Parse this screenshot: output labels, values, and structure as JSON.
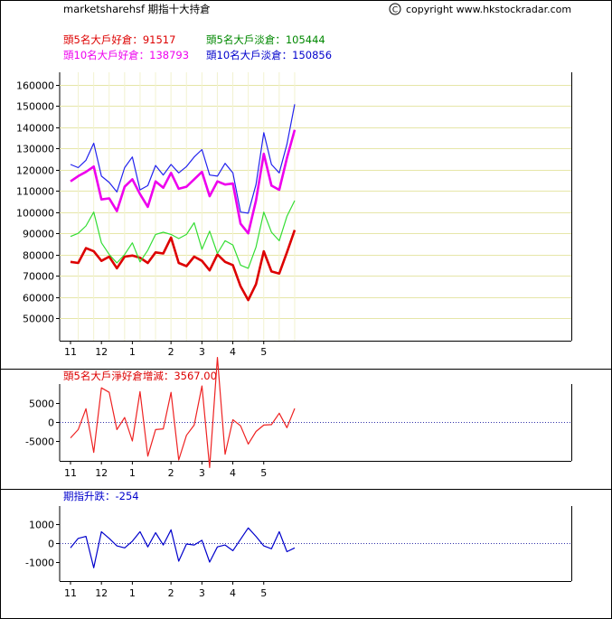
{
  "header": {
    "title": "marketsharehsf 期指十大持倉",
    "copyright_symbol": "C",
    "copyright": "copyright www.hkstockradar.com"
  },
  "legend": {
    "top5_long": {
      "label": "頭5名大戶好倉：",
      "value": "91517",
      "color": "#dd0000"
    },
    "top5_short": {
      "label": "頭5名大戶淡倉：",
      "value": "105444",
      "color": "#008800"
    },
    "top10_long": {
      "label": "頭10名大戶好倉：",
      "value": "138793",
      "color": "#ee00ee"
    },
    "top10_short": {
      "label": "頭10名大戶淡倉：",
      "value": "150856",
      "color": "#0000cc"
    }
  },
  "panel2": {
    "label": "頭5名大戶淨好倉增減：",
    "value": "3567.00",
    "color": "#dd0000"
  },
  "panel3": {
    "label": "期指升跌：",
    "value": "-254",
    "color": "#0000cc"
  },
  "x_axis": {
    "labels": [
      {
        "text": "11",
        "index": 1
      },
      {
        "text": "12",
        "index": 9
      },
      {
        "text": "1",
        "index": 17
      },
      {
        "text": "2",
        "index": 27
      },
      {
        "text": "3",
        "index": 35
      },
      {
        "text": "4",
        "index": 43
      },
      {
        "text": "5",
        "index": 51
      }
    ]
  },
  "chart_data": [
    {
      "type": "line",
      "title": "",
      "ylim": [
        40000,
        170000
      ],
      "yticks": [
        50000,
        60000,
        70000,
        80000,
        90000,
        100000,
        110000,
        120000,
        130000,
        140000,
        150000,
        160000
      ],
      "grid": true,
      "series": [
        {
          "name": "頭5名大戶好倉",
          "color": "#dd0000",
          "width": 2.6,
          "values": [
            76500,
            76000,
            83000,
            81500,
            77000,
            79000,
            73500,
            79000,
            79500,
            78500,
            76000,
            81000,
            80500,
            88000,
            76000,
            74500,
            79000,
            77000,
            72500,
            80000,
            76500,
            75000,
            65000,
            58500,
            66000,
            81500,
            72000,
            71000,
            81000,
            91517
          ]
        },
        {
          "name": "頭5名大戶淡倉",
          "color": "#33dd33",
          "width": 1.2,
          "values": [
            88500,
            90000,
            93500,
            100000,
            85500,
            80000,
            76000,
            80000,
            85500,
            76500,
            82000,
            89500,
            90500,
            89500,
            87500,
            89500,
            95000,
            82500,
            91000,
            80500,
            86500,
            84500,
            75000,
            73500,
            83500,
            100000,
            90500,
            86500,
            98000,
            105444
          ]
        },
        {
          "name": "頭10名大戶好倉",
          "color": "#ee00ee",
          "width": 2.6,
          "values": [
            114500,
            117000,
            119000,
            121500,
            106000,
            106500,
            100500,
            112000,
            115500,
            108500,
            102500,
            114500,
            111500,
            118500,
            111000,
            112000,
            115500,
            119000,
            107500,
            114500,
            113000,
            113500,
            94500,
            90000,
            105500,
            127500,
            112500,
            110500,
            125500,
            138793
          ]
        },
        {
          "name": "頭10名大戶淡倉",
          "color": "#2222ee",
          "width": 1.2,
          "values": [
            122500,
            121000,
            124500,
            132500,
            117000,
            114000,
            109500,
            121000,
            126000,
            110500,
            112500,
            122000,
            117500,
            122500,
            118500,
            121500,
            126000,
            129500,
            117500,
            117000,
            123000,
            118500,
            100000,
            99500,
            113000,
            137500,
            122500,
            118500,
            132000,
            150856
          ]
        }
      ]
    },
    {
      "type": "line",
      "title": "頭5名大戶淨好倉增減",
      "ylim": [
        -10000,
        11000
      ],
      "yticks": [
        -5000,
        0,
        5000
      ],
      "zero_line": true,
      "series": [
        {
          "name": "頭5名大戶淨好倉增減",
          "color": "#ee2222",
          "width": 1.2,
          "values": [
            -4200,
            -2000,
            3500,
            -8000,
            9000,
            7800,
            -2000,
            1200,
            -5000,
            8000,
            -9000,
            -2000,
            -1800,
            7800,
            -10000,
            -3500,
            -800,
            9500,
            -12000,
            17000,
            -8500,
            600,
            -1000,
            -5800,
            -2500,
            -800,
            -700,
            2300,
            -1500,
            3567
          ]
        }
      ]
    },
    {
      "type": "line",
      "title": "期指升跌",
      "ylim": [
        -1800,
        1800
      ],
      "yticks": [
        -1000,
        0,
        1000
      ],
      "zero_line": true,
      "series": [
        {
          "name": "期指升跌",
          "color": "#0000cc",
          "width": 1.2,
          "values": [
            -250,
            250,
            350,
            -1300,
            600,
            250,
            -150,
            -250,
            100,
            600,
            -200,
            550,
            -100,
            700,
            -950,
            -50,
            -100,
            150,
            -1000,
            -200,
            -100,
            -400,
            200,
            800,
            350,
            -150,
            -300,
            600,
            -450,
            -254
          ]
        }
      ]
    }
  ]
}
